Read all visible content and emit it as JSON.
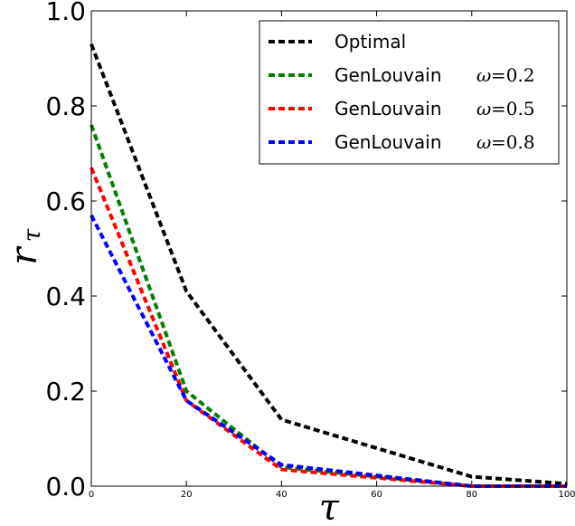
{
  "chart_data": {
    "type": "line",
    "title": "",
    "xlabel": "τ",
    "ylabel": "r",
    "ylabel_sub": "τ",
    "xlim": [
      0,
      100
    ],
    "ylim": [
      0,
      1.0
    ],
    "x_ticks": [
      "0",
      "20",
      "40",
      "60",
      "80",
      "100"
    ],
    "y_ticks": [
      "0.0",
      "0.2",
      "0.4",
      "0.6",
      "0.8",
      "1.0"
    ],
    "x_tick_values": [
      0,
      20,
      40,
      60,
      80,
      100
    ],
    "y_tick_values": [
      0,
      0.2,
      0.4,
      0.6,
      0.8,
      1.0
    ],
    "legend_position": "top-right",
    "line_style": "dashed",
    "series": [
      {
        "name": "Optimal",
        "legend_text": "Optimal",
        "legend_omega": "",
        "legend_value": "",
        "color": "#000000",
        "x": [
          0,
          20,
          40,
          80,
          100
        ],
        "y": [
          0.93,
          0.41,
          0.14,
          0.02,
          0.005
        ]
      },
      {
        "name": "GenLouvain ω=0.2",
        "legend_text": "GenLouvain",
        "legend_omega": "ω",
        "legend_value": "=0.2",
        "color": "#008000",
        "x": [
          0,
          20,
          40,
          80,
          100
        ],
        "y": [
          0.76,
          0.2,
          0.04,
          0.0,
          0.0
        ]
      },
      {
        "name": "GenLouvain ω=0.5",
        "legend_text": "GenLouvain",
        "legend_omega": "ω",
        "legend_value": "=0.5",
        "color": "#ff0000",
        "x": [
          0,
          20,
          40,
          80,
          100
        ],
        "y": [
          0.67,
          0.18,
          0.035,
          0.0,
          0.0
        ]
      },
      {
        "name": "GenLouvain ω=0.8",
        "legend_text": "GenLouvain",
        "legend_omega": "ω",
        "legend_value": "=0.8",
        "color": "#0000ff",
        "x": [
          0,
          20,
          40,
          80,
          100
        ],
        "y": [
          0.57,
          0.18,
          0.045,
          0.0,
          0.0
        ]
      }
    ]
  }
}
